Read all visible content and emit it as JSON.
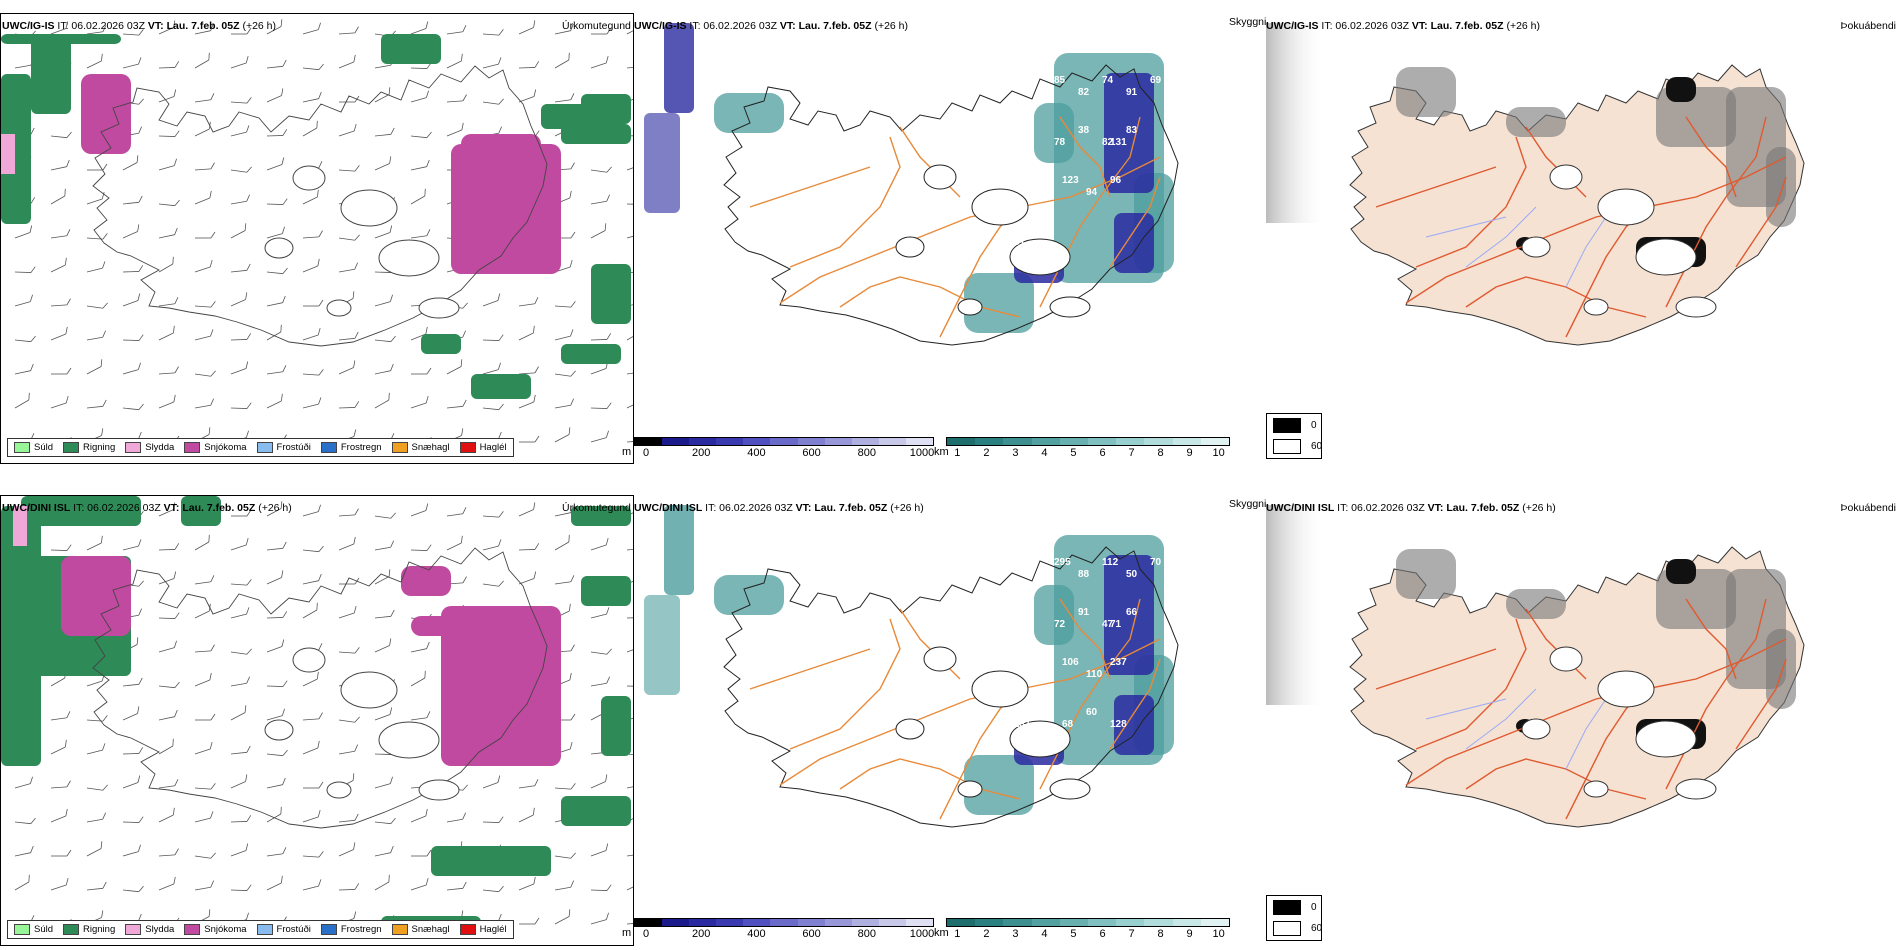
{
  "rows": [
    {
      "model_label": "UWC/IG-IS",
      "it_label": " IT:",
      "it_value": " 06.02.2026 03Z ",
      "vt_label": "VT: Lau. 7.feb. 05Z",
      "lead": " (+26 h)",
      "precip_title": "Úrkomutegund",
      "clouds_title": "Skyggni",
      "fog_title": "Þokuábendi",
      "visibility_numbers": [
        "85",
        "82",
        "74",
        "91",
        "69",
        "78",
        "38",
        "82",
        "83",
        "131",
        "109",
        "70",
        "123",
        "94",
        "96",
        "81"
      ]
    },
    {
      "model_label": "UWC/DINI ISL",
      "it_label": " IT:",
      "it_value": " 06.02.2026 03Z ",
      "vt_label": "VT: Lau. 7.feb. 05Z",
      "lead": " (+26 h)",
      "precip_title": "Úrkomutegund",
      "clouds_title": "Skyggni",
      "fog_title": "Þokuábendi",
      "visibility_numbers": [
        "295",
        "88",
        "112",
        "50",
        "70",
        "72",
        "91",
        "47",
        "66",
        "71",
        "64",
        "57",
        "106",
        "110",
        "237",
        "131",
        "115",
        "68",
        "60",
        "128"
      ]
    }
  ],
  "precip_legend": [
    {
      "label": "Súld",
      "color": "#98f598"
    },
    {
      "label": "Rigning",
      "color": "#2e8b57"
    },
    {
      "label": "Slydda",
      "color": "#f0a8d8"
    },
    {
      "label": "Snjókoma",
      "color": "#c04aa0"
    },
    {
      "label": "Frostúði",
      "color": "#88bbee"
    },
    {
      "label": "Frostregn",
      "color": "#2a70c8"
    },
    {
      "label": "Snæhagl",
      "color": "#f0a020"
    },
    {
      "label": "Haglél",
      "color": "#e01010"
    }
  ],
  "cloud_base_scale": {
    "unit": "m",
    "ticks": [
      "0",
      "200",
      "400",
      "600",
      "800",
      "1000"
    ],
    "colors": [
      "#000000",
      "#1a1a8a",
      "#2a2aa0",
      "#3a3ab0",
      "#5050c0",
      "#6a6ac8",
      "#8080d0",
      "#9898d8",
      "#b0b0e0",
      "#c8c8e8",
      "#e0e0f4"
    ]
  },
  "visibility_scale": {
    "unit": "km",
    "ticks": [
      "1",
      "2",
      "3",
      "4",
      "5",
      "6",
      "7",
      "8",
      "9",
      "10"
    ],
    "colors": [
      "#1e6e6e",
      "#2a8080",
      "#3e9090",
      "#52a0a0",
      "#68b0b0",
      "#80c0c0",
      "#98d0d0",
      "#b0dcdc",
      "#c8e8e8",
      "#e0f2f2"
    ]
  },
  "fog_legend": [
    {
      "label": "0",
      "color": "#000000"
    },
    {
      "label": "60",
      "color": "#ffffff"
    }
  ],
  "colors": {
    "land": "#f5e2d3",
    "roads": "#e88a3a",
    "rivers": "#9aaaf5",
    "coast": "#333333",
    "snow": "#c04aa0",
    "rain": "#2e8b57",
    "cloud_base": "#2a2aa0",
    "visibility": "#4e9e9e"
  }
}
